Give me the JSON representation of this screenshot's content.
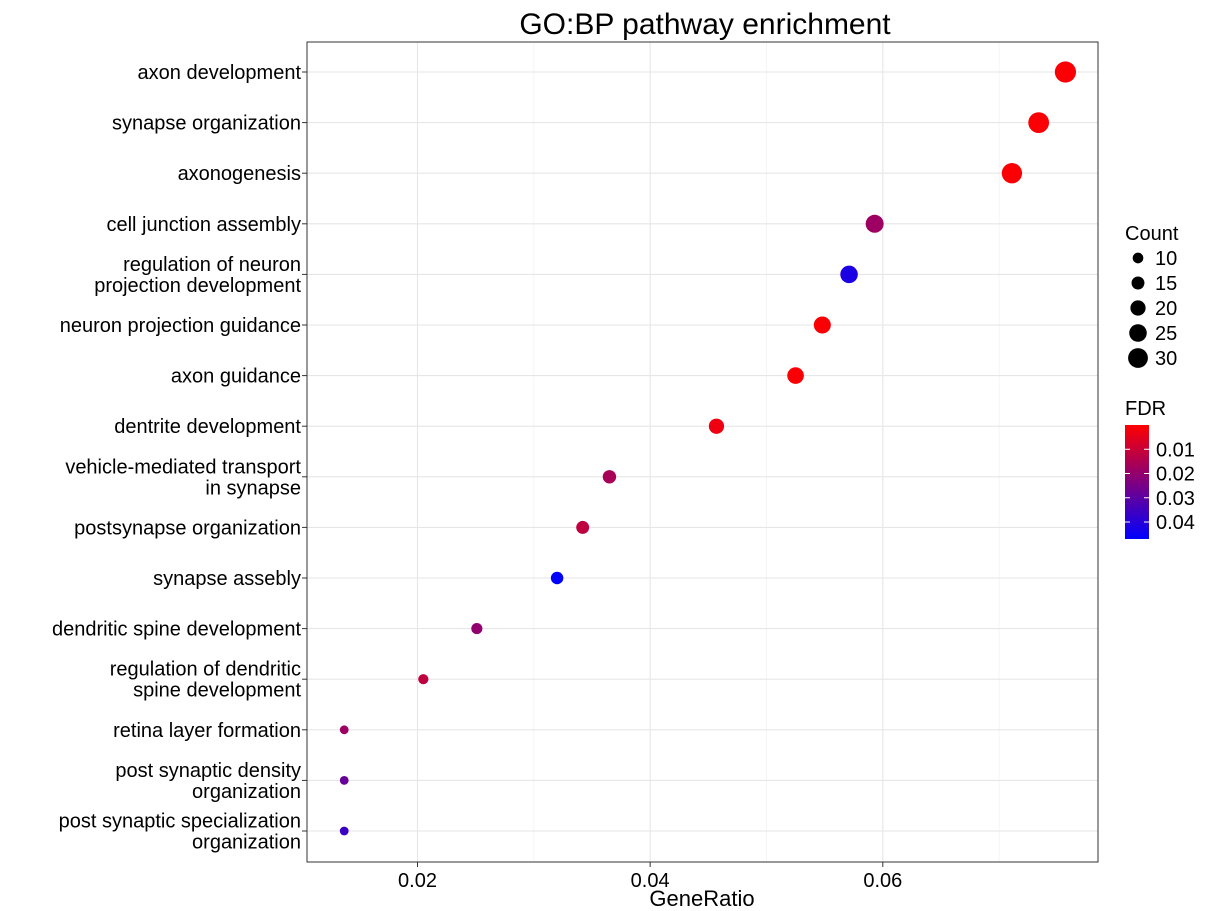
{
  "chart_data": {
    "type": "scatter",
    "title": "GO:BP pathway enrichment",
    "xlabel": "GeneRatio",
    "ylabel": "",
    "xlim": [
      0.0105,
      0.0785
    ],
    "xticks": [
      0.02,
      0.04,
      0.06
    ],
    "xtick_labels": [
      "0.02",
      "0.04",
      "0.06"
    ],
    "grid": true,
    "legend_placement": "right",
    "categories": [
      "axon development",
      "synapse organization",
      "axonogenesis",
      "cell junction assembly",
      "regulation of neuron\nprojection development",
      "neuron projection guidance",
      "axon guidance",
      "dentrite development",
      "vehicle-mediated transport\nin synapse",
      "postsynapse organization",
      "synapse assebly",
      "dendritic spine development",
      "regulation of dendritic\nspine development",
      "retina layer formation",
      "post synaptic density\norganization",
      "post synaptic specialization\norganization"
    ],
    "gene_ratio": [
      0.0757,
      0.0734,
      0.0711,
      0.0593,
      0.0571,
      0.0548,
      0.0525,
      0.0457,
      0.0365,
      0.0342,
      0.032,
      0.0251,
      0.0205,
      0.0137,
      0.0137,
      0.0137
    ],
    "count": [
      33,
      32,
      31,
      26,
      25,
      24,
      23,
      20,
      16,
      15,
      14,
      11,
      9,
      6,
      6,
      6
    ],
    "fdr": [
      0.001,
      0.001,
      0.001,
      0.018,
      0.042,
      0.001,
      0.001,
      0.003,
      0.016,
      0.012,
      0.047,
      0.02,
      0.012,
      0.018,
      0.028,
      0.036
    ],
    "size_legend": {
      "title": "Count",
      "values": [
        10,
        15,
        20,
        25,
        30
      ],
      "labels": [
        "10",
        "15",
        "20",
        "25",
        "30"
      ]
    },
    "color_legend": {
      "title": "FDR",
      "range": [
        0.0,
        0.047
      ],
      "low_color": "#FF0000",
      "high_color": "#0000FF",
      "ticks": [
        0.01,
        0.02,
        0.03,
        0.04
      ],
      "tick_labels": [
        "0.01",
        "0.02",
        "0.03",
        "0.04"
      ]
    }
  }
}
